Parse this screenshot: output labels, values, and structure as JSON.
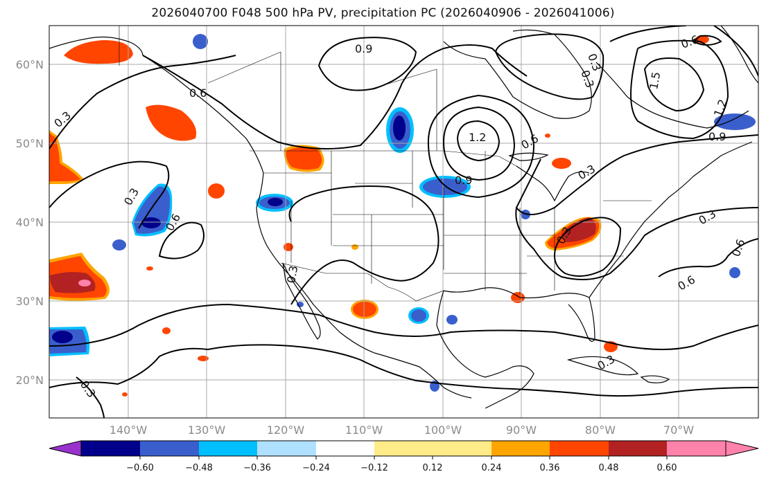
{
  "title": "2026040700 F048 500 hPa PV, precipitation PC (2026040906 - 2026041006)",
  "map": {
    "lat_labels": [
      "60°N",
      "50°N",
      "40°N",
      "30°N",
      "20°N"
    ],
    "lon_labels": [
      "140°W",
      "130°W",
      "120°W",
      "110°W",
      "100°W",
      "90°W",
      "80°W",
      "70°W"
    ],
    "contour_labels": [
      "0.9",
      "0.6",
      "0.3",
      "0.3",
      "0.6",
      "0.3",
      "1.2",
      "0.9",
      "0.6",
      "0.3",
      "0.3",
      "1.5",
      "1.2",
      "0.9",
      "0.6",
      "0.6",
      "0.3",
      "0.3",
      "0.3",
      "0.6",
      "0.3",
      "0.3"
    ]
  },
  "colorbar": {
    "ticks": [
      "−0.60",
      "−0.48",
      "−0.36",
      "−0.24",
      "−0.12",
      "0.12",
      "0.24",
      "0.36",
      "0.48",
      "0.60"
    ],
    "colors": [
      "#9932cc",
      "#00008b",
      "#3a5fcd",
      "#00bfff",
      "#b0e0ff",
      "#ffffff",
      "#ffeb87",
      "#ffa500",
      "#ff4500",
      "#b22222",
      "#ff82ab"
    ]
  },
  "fill_colors": {
    "neg_strong": "#00008b",
    "neg_mid": "#3a5fcd",
    "neg_light": "#00bfff",
    "pos_light": "#ffa500",
    "pos_mid": "#ff4500",
    "pos_strong": "#b22222",
    "pos_max": "#ff82ab"
  }
}
